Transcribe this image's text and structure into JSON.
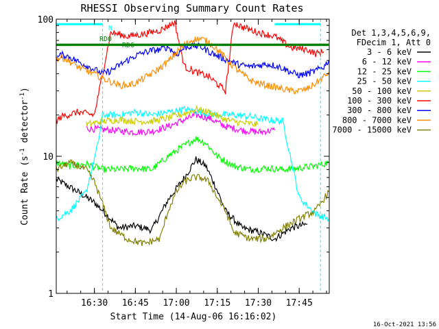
{
  "chart_data": {
    "type": "line",
    "title": "RHESSI Observing Summary Count Rates",
    "xlabel": "Start Time (14-Aug-06 16:16:02)",
    "ylabel": "Count Rate (s",
    "ylabel_sup": "-1",
    "ylabel_tail": " detector",
    "ylabel_end": ")",
    "y_scale": "log",
    "ylim": [
      1,
      100
    ],
    "xlim": [
      16.2672,
      17.9333
    ],
    "x_ticks": [
      {
        "value": 16.5,
        "label": "16:30"
      },
      {
        "value": 16.75,
        "label": "16:45"
      },
      {
        "value": 17.0,
        "label": "17:00"
      },
      {
        "value": 17.25,
        "label": "17:15"
      },
      {
        "value": 17.5,
        "label": "17:30"
      },
      {
        "value": 17.75,
        "label": "17:45"
      }
    ],
    "y_ticks": [
      {
        "value": 1,
        "label": "1"
      },
      {
        "value": 10,
        "label": "10"
      },
      {
        "value": 100,
        "label": "100"
      }
    ],
    "legend_header": [
      "Det 1,3,4,5,6,9,",
      "FDecim 1, Att 0"
    ],
    "legend_position": "right",
    "series": [
      {
        "name": "3 - 6 keV",
        "color": "#000000",
        "points": [
          [
            16.267,
            6.8
          ],
          [
            16.4,
            5.5
          ],
          [
            16.5,
            4.6
          ],
          [
            16.58,
            3.7
          ],
          [
            16.65,
            3.0
          ],
          [
            16.75,
            3.1
          ],
          [
            16.85,
            2.9
          ],
          [
            16.95,
            4.8
          ],
          [
            17.05,
            7.0
          ],
          [
            17.12,
            9.5
          ],
          [
            17.18,
            8.5
          ],
          [
            17.24,
            6.0
          ],
          [
            17.3,
            4.0
          ],
          [
            17.4,
            3.0
          ],
          [
            17.5,
            2.8
          ],
          [
            17.6,
            2.5
          ],
          [
            17.7,
            3.0
          ],
          [
            17.8,
            3.2
          ]
        ]
      },
      {
        "name": "6 - 12 keV",
        "color": "#ff00ff",
        "points": [
          [
            16.45,
            16.0
          ],
          [
            16.6,
            15.5
          ],
          [
            16.75,
            15.0
          ],
          [
            16.85,
            15.2
          ],
          [
            16.95,
            16.5
          ],
          [
            17.05,
            18.5
          ],
          [
            17.12,
            20.0
          ],
          [
            17.2,
            19.0
          ],
          [
            17.3,
            16.5
          ],
          [
            17.4,
            15.5
          ],
          [
            17.5,
            15.0
          ],
          [
            17.6,
            15.5
          ]
        ]
      },
      {
        "name": "12 - 25 keV",
        "color": "#00ff00",
        "points": [
          [
            16.267,
            9.0
          ],
          [
            16.35,
            8.5
          ],
          [
            16.45,
            8.8
          ],
          [
            16.55,
            8.0
          ],
          [
            16.65,
            8.0
          ],
          [
            16.75,
            8.2
          ],
          [
            16.85,
            8.0
          ],
          [
            16.95,
            10.0
          ],
          [
            17.05,
            12.0
          ],
          [
            17.12,
            13.5
          ],
          [
            17.18,
            12.5
          ],
          [
            17.25,
            10.0
          ],
          [
            17.35,
            8.5
          ],
          [
            17.45,
            8.0
          ],
          [
            17.55,
            8.2
          ],
          [
            17.65,
            8.0
          ],
          [
            17.75,
            8.2
          ],
          [
            17.85,
            8.5
          ],
          [
            17.93,
            9.0
          ]
        ]
      },
      {
        "name": "25 - 50 keV",
        "color": "#00ffff",
        "points": [
          [
            16.267,
            3.5
          ],
          [
            16.35,
            4.0
          ],
          [
            16.45,
            5.5
          ],
          [
            16.52,
            12.0
          ],
          [
            16.55,
            20.0
          ],
          [
            16.65,
            20.0
          ],
          [
            16.75,
            21.0
          ],
          [
            16.85,
            20.0
          ],
          [
            16.95,
            21.0
          ],
          [
            17.05,
            22.0
          ],
          [
            17.15,
            21.0
          ],
          [
            17.25,
            20.0
          ],
          [
            17.35,
            20.0
          ],
          [
            17.45,
            19.5
          ],
          [
            17.55,
            18.5
          ],
          [
            17.65,
            18.0
          ],
          [
            17.75,
            5.0
          ],
          [
            17.85,
            3.8
          ],
          [
            17.93,
            3.5
          ]
        ]
      },
      {
        "name": "50 - 100 keV",
        "color": "#cccc00",
        "points": [
          [
            16.45,
            17.0
          ],
          [
            16.55,
            18.0
          ],
          [
            16.65,
            18.5
          ],
          [
            16.75,
            18.0
          ],
          [
            16.85,
            18.0
          ],
          [
            16.95,
            19.0
          ],
          [
            17.05,
            20.5
          ],
          [
            17.12,
            22.0
          ],
          [
            17.2,
            21.0
          ],
          [
            17.3,
            18.5
          ],
          [
            17.4,
            17.5
          ],
          [
            17.5,
            17.0
          ]
        ]
      },
      {
        "name": "100 - 300 keV",
        "color": "#ff0000",
        "points": [
          [
            16.267,
            18.0
          ],
          [
            16.3,
            19.5
          ],
          [
            16.4,
            21.0
          ],
          [
            16.45,
            20.5
          ],
          [
            16.5,
            20.0
          ],
          [
            16.6,
            80.0
          ],
          [
            16.7,
            75.0
          ],
          [
            16.8,
            78.0
          ],
          [
            16.9,
            83.0
          ],
          [
            16.99,
            95.0
          ],
          [
            17.05,
            45.0
          ],
          [
            17.1,
            42.0
          ],
          [
            17.2,
            38.0
          ],
          [
            17.3,
            30.0
          ],
          [
            17.35,
            95.0
          ],
          [
            17.4,
            88.0
          ],
          [
            17.5,
            80.0
          ],
          [
            17.6,
            75.0
          ],
          [
            17.7,
            62.0
          ],
          [
            17.8,
            60.0
          ],
          [
            17.85,
            56.0
          ],
          [
            17.9,
            58.0
          ]
        ]
      },
      {
        "name": "300 - 800 keV",
        "color": "#0000ff",
        "points": [
          [
            16.267,
            52.0
          ],
          [
            16.3,
            55.0
          ],
          [
            16.35,
            53.0
          ],
          [
            16.4,
            49.0
          ],
          [
            16.45,
            46.0
          ],
          [
            16.5,
            43.0
          ],
          [
            16.55,
            40.0
          ],
          [
            16.6,
            42.0
          ],
          [
            16.65,
            46.0
          ],
          [
            16.7,
            50.0
          ],
          [
            16.75,
            54.0
          ],
          [
            16.8,
            57.0
          ],
          [
            16.85,
            59.0
          ],
          [
            16.9,
            60.0
          ],
          [
            16.95,
            63.0
          ],
          [
            17.0,
            55.0
          ],
          [
            17.05,
            62.0
          ],
          [
            17.1,
            64.0
          ],
          [
            17.15,
            63.0
          ],
          [
            17.2,
            58.0
          ],
          [
            17.25,
            54.0
          ],
          [
            17.3,
            51.0
          ],
          [
            17.35,
            48.0
          ],
          [
            17.4,
            46.0
          ],
          [
            17.45,
            45.0
          ],
          [
            17.5,
            46.0
          ],
          [
            17.55,
            47.0
          ],
          [
            17.6,
            46.0
          ],
          [
            17.65,
            44.0
          ],
          [
            17.7,
            41.0
          ],
          [
            17.75,
            39.0
          ],
          [
            17.8,
            40.0
          ],
          [
            17.85,
            42.0
          ],
          [
            17.9,
            45.0
          ],
          [
            17.93,
            50.0
          ]
        ]
      },
      {
        "name": "800 - 7000 keV",
        "color": "#ff8c00",
        "points": [
          [
            16.267,
            51.0
          ],
          [
            16.3,
            53.0
          ],
          [
            16.35,
            49.0
          ],
          [
            16.4,
            45.0
          ],
          [
            16.45,
            42.0
          ],
          [
            16.5,
            40.0
          ],
          [
            16.55,
            37.0
          ],
          [
            16.6,
            35.0
          ],
          [
            16.65,
            33.0
          ],
          [
            16.7,
            33.0
          ],
          [
            16.75,
            34.0
          ],
          [
            16.8,
            37.0
          ],
          [
            16.85,
            40.0
          ],
          [
            16.9,
            44.0
          ],
          [
            16.95,
            49.0
          ],
          [
            17.0,
            57.0
          ],
          [
            17.05,
            65.0
          ],
          [
            17.1,
            71.0
          ],
          [
            17.15,
            72.0
          ],
          [
            17.2,
            68.0
          ],
          [
            17.25,
            60.0
          ],
          [
            17.3,
            52.0
          ],
          [
            17.35,
            45.0
          ],
          [
            17.4,
            40.0
          ],
          [
            17.45,
            36.0
          ],
          [
            17.5,
            34.0
          ],
          [
            17.55,
            33.0
          ],
          [
            17.6,
            32.0
          ],
          [
            17.65,
            31.0
          ],
          [
            17.7,
            30.0
          ],
          [
            17.75,
            30.0
          ],
          [
            17.8,
            31.0
          ],
          [
            17.85,
            34.0
          ],
          [
            17.9,
            38.0
          ],
          [
            17.93,
            41.0
          ]
        ]
      },
      {
        "name": "7000 - 15000 keV",
        "color": "#808000",
        "points": [
          [
            16.267,
            8.0
          ],
          [
            16.35,
            9.0
          ],
          [
            16.45,
            8.0
          ],
          [
            16.5,
            6.5
          ],
          [
            16.55,
            4.5
          ],
          [
            16.6,
            3.0
          ],
          [
            16.7,
            2.5
          ],
          [
            16.8,
            2.3
          ],
          [
            16.9,
            2.5
          ],
          [
            16.95,
            4.0
          ],
          [
            17.0,
            5.5
          ],
          [
            17.05,
            6.5
          ],
          [
            17.1,
            7.0
          ],
          [
            17.15,
            7.0
          ],
          [
            17.2,
            6.5
          ],
          [
            17.25,
            5.0
          ],
          [
            17.3,
            4.0
          ],
          [
            17.35,
            2.8
          ],
          [
            17.45,
            2.5
          ],
          [
            17.55,
            2.5
          ],
          [
            17.65,
            3.0
          ],
          [
            17.75,
            3.5
          ],
          [
            17.85,
            4.0
          ],
          [
            17.93,
            5.5
          ]
        ]
      }
    ],
    "annotations": [
      {
        "text": "N",
        "color": "#00ffff"
      },
      {
        "text": "RD0",
        "color": "#008000"
      },
      {
        "text": "RD6",
        "color": "#008000"
      }
    ],
    "night_lines_x": [
      16.55,
      17.88
    ],
    "night_bars": [
      [
        16.267,
        16.55,
        92
      ],
      [
        17.6,
        17.88,
        92
      ]
    ],
    "attenuator_bar": [
      [
        16.267,
        17.93,
        65
      ]
    ],
    "footer": "16-Oct-2021 13:56"
  }
}
